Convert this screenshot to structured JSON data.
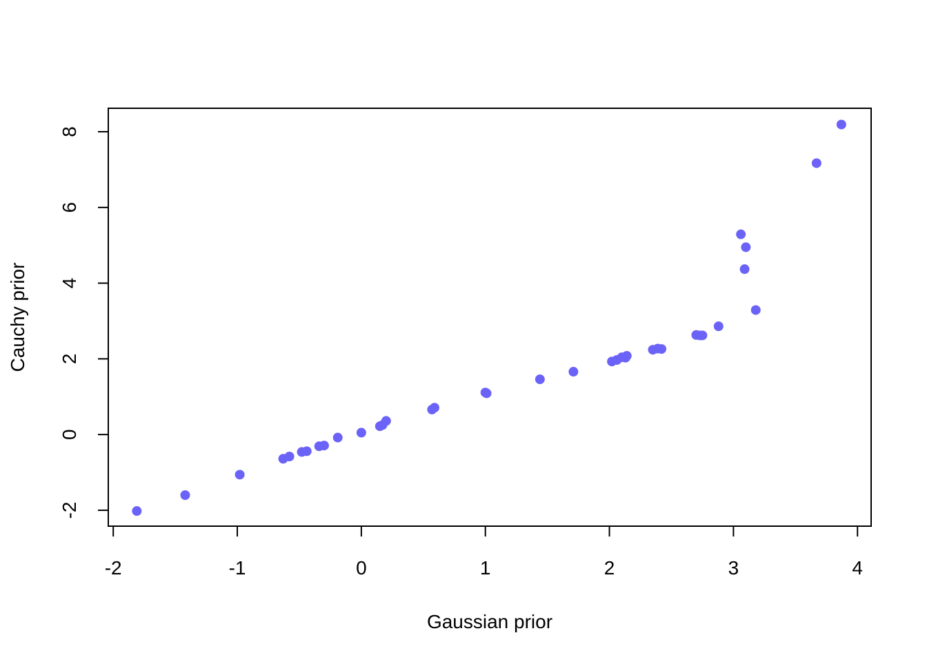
{
  "chart_data": {
    "type": "scatter",
    "title": "",
    "xlabel": "Gaussian prior",
    "ylabel": "Cauchy prior",
    "xlim": [
      -2.04,
      4.11
    ],
    "ylim": [
      -2.42,
      8.62
    ],
    "xticks": [
      -2,
      -1,
      0,
      1,
      2,
      3,
      4
    ],
    "yticks": [
      -2,
      0,
      2,
      4,
      6,
      8
    ],
    "xtick_labels": [
      "-2",
      "-1",
      "0",
      "1",
      "2",
      "3",
      "4"
    ],
    "ytick_labels": [
      "-2",
      "0",
      "2",
      "4",
      "6",
      "8"
    ],
    "grid": false,
    "point_color": "#6b63f7",
    "points": [
      {
        "x": -1.81,
        "y": -2.02
      },
      {
        "x": -1.42,
        "y": -1.6
      },
      {
        "x": -0.98,
        "y": -1.06
      },
      {
        "x": -0.63,
        "y": -0.64
      },
      {
        "x": -0.58,
        "y": -0.58
      },
      {
        "x": -0.48,
        "y": -0.46
      },
      {
        "x": -0.44,
        "y": -0.44
      },
      {
        "x": -0.34,
        "y": -0.31
      },
      {
        "x": -0.3,
        "y": -0.29
      },
      {
        "x": -0.19,
        "y": -0.08
      },
      {
        "x": 0.0,
        "y": 0.05
      },
      {
        "x": 0.15,
        "y": 0.22
      },
      {
        "x": 0.17,
        "y": 0.25
      },
      {
        "x": 0.2,
        "y": 0.36
      },
      {
        "x": 0.57,
        "y": 0.66
      },
      {
        "x": 0.59,
        "y": 0.71
      },
      {
        "x": 1.0,
        "y": 1.11
      },
      {
        "x": 1.01,
        "y": 1.09
      },
      {
        "x": 1.44,
        "y": 1.46
      },
      {
        "x": 1.71,
        "y": 1.66
      },
      {
        "x": 2.02,
        "y": 1.93
      },
      {
        "x": 2.06,
        "y": 1.97
      },
      {
        "x": 2.1,
        "y": 2.04
      },
      {
        "x": 2.13,
        "y": 2.03
      },
      {
        "x": 2.14,
        "y": 2.08
      },
      {
        "x": 2.35,
        "y": 2.24
      },
      {
        "x": 2.39,
        "y": 2.27
      },
      {
        "x": 2.42,
        "y": 2.26
      },
      {
        "x": 2.7,
        "y": 2.63
      },
      {
        "x": 2.73,
        "y": 2.62
      },
      {
        "x": 2.75,
        "y": 2.62
      },
      {
        "x": 2.88,
        "y": 2.86
      },
      {
        "x": 3.06,
        "y": 5.29
      },
      {
        "x": 3.09,
        "y": 4.37
      },
      {
        "x": 3.1,
        "y": 4.95
      },
      {
        "x": 3.18,
        "y": 3.29
      },
      {
        "x": 3.67,
        "y": 7.17
      },
      {
        "x": 3.87,
        "y": 8.19
      }
    ]
  }
}
